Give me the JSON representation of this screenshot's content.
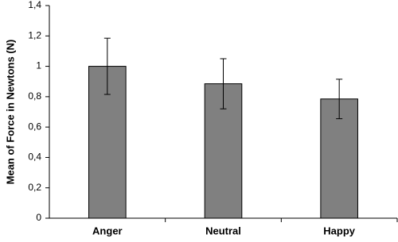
{
  "chart_data": {
    "type": "bar",
    "y_label": "Mean of Force in Newtons (N)",
    "categories": [
      "Anger",
      "Neutral",
      "Happy"
    ],
    "values": [
      1.0,
      0.885,
      0.785
    ],
    "errors": [
      0.185,
      0.165,
      0.13
    ],
    "color": "#808080",
    "ylim": [
      0,
      1.4
    ],
    "yticks": [
      0,
      {
        "value": 0.2,
        "label": "0,2"
      },
      {
        "value": 0.4,
        "label": "0,4"
      },
      {
        "value": 0.6,
        "label": "0,6"
      },
      {
        "value": 0.8,
        "label": "0,8"
      },
      1,
      {
        "value": 1.2,
        "label": "1,2"
      },
      {
        "value": 1.4,
        "label": "1,4"
      }
    ],
    "grid": false
  }
}
